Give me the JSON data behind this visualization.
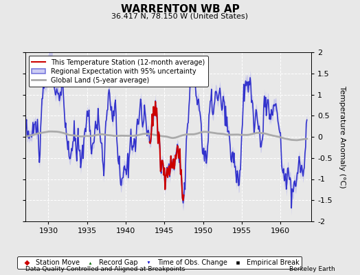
{
  "title": "WARRENTON WB AP",
  "subtitle": "36.417 N, 78.150 W (United States)",
  "ylabel": "Temperature Anomaly (°C)",
  "footer_left": "Data Quality Controlled and Aligned at Breakpoints",
  "footer_right": "Berkeley Earth",
  "ylim": [
    -2,
    2
  ],
  "xlim": [
    1927.0,
    1964.0
  ],
  "xticks": [
    1930,
    1935,
    1940,
    1945,
    1950,
    1955,
    1960
  ],
  "yticks": [
    -2,
    -1.5,
    -1,
    -0.5,
    0,
    0.5,
    1,
    1.5,
    2
  ],
  "bg_color": "#e8e8e8",
  "plot_bg": "#e8e8e8",
  "grid_color": "#ffffff",
  "legend_items": [
    {
      "label": "This Temperature Station (12-month average)",
      "color": "#cc0000",
      "lw": 1.5
    },
    {
      "label": "Regional Expectation with 95% uncertainty",
      "color": "#3333cc",
      "lw": 1.2
    },
    {
      "label": "Global Land (5-year average)",
      "color": "#aaaaaa",
      "lw": 2.0
    }
  ],
  "marker_legend": [
    {
      "marker": "D",
      "color": "#cc0000",
      "label": "Station Move"
    },
    {
      "marker": "^",
      "color": "#006600",
      "label": "Record Gap"
    },
    {
      "marker": "v",
      "color": "#0000cc",
      "label": "Time of Obs. Change"
    },
    {
      "marker": "s",
      "color": "#000000",
      "label": "Empirical Break"
    }
  ],
  "station_data_start": 1943.0,
  "station_data_end": 1947.5,
  "uncertainty_color": "#aaaaee",
  "uncertainty_alpha": 0.5
}
